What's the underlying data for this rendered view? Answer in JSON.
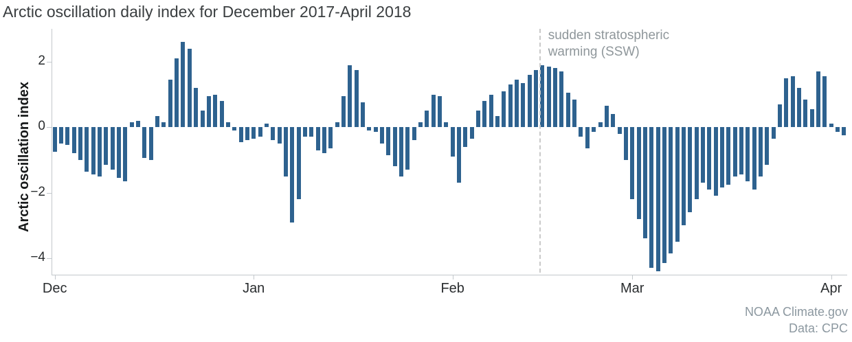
{
  "source": {
    "line1": "NOAA Climate.gov",
    "line2": "Data: CPC"
  },
  "chart_data": {
    "type": "bar",
    "title": "Arctic oscillation daily index for December 2017-April 2018",
    "xlabel": "",
    "ylabel": "Arctic oscillation index",
    "ylim": [
      -4.5,
      3.0
    ],
    "yticks": [
      2,
      0,
      -2,
      -4
    ],
    "grid": false,
    "legend": "none",
    "bar_color": "#2e628f",
    "axis_color": "#c3c8cc",
    "x_tick_labels": [
      "Dec",
      "Jan",
      "Feb",
      "Mar",
      "Apr"
    ],
    "x_tick_day_indices": [
      0,
      31,
      62,
      90,
      121
    ],
    "annotation": {
      "line1": "sudden stratospheric",
      "line2": "warming (SSW)",
      "label": "sudden stratospheric warming (SSW)",
      "day_index": 76,
      "line_color": "#c9c9c9"
    },
    "start_label": "Dec",
    "values": [
      -0.75,
      -0.5,
      -0.55,
      -0.8,
      -1.0,
      -1.35,
      -1.45,
      -1.5,
      -1.15,
      -1.3,
      -1.55,
      -1.65,
      0.15,
      0.2,
      -0.95,
      -1.0,
      0.35,
      0.15,
      1.45,
      2.1,
      2.6,
      2.4,
      1.2,
      0.5,
      0.95,
      1.0,
      0.8,
      0.15,
      -0.1,
      -0.45,
      -0.4,
      -0.35,
      -0.3,
      0.1,
      -0.4,
      -0.5,
      -1.5,
      -2.9,
      -2.2,
      -0.3,
      -0.3,
      -0.7,
      -0.8,
      -0.65,
      0.15,
      0.95,
      1.9,
      1.75,
      0.75,
      -0.1,
      -0.15,
      -0.5,
      -0.85,
      -1.2,
      -1.5,
      -1.3,
      -0.4,
      0.15,
      0.5,
      1.0,
      0.95,
      0.15,
      -0.9,
      -1.7,
      -0.6,
      -0.35,
      0.5,
      0.8,
      1.0,
      0.35,
      1.1,
      1.3,
      1.45,
      1.35,
      1.6,
      1.75,
      1.9,
      1.85,
      1.8,
      1.7,
      1.05,
      0.85,
      -0.3,
      -0.65,
      -0.15,
      0.15,
      0.65,
      0.4,
      -0.2,
      -1.0,
      -2.2,
      -2.8,
      -3.4,
      -4.3,
      -4.4,
      -4.15,
      -3.85,
      -3.5,
      -3.0,
      -2.6,
      -2.2,
      -1.7,
      -1.9,
      -2.1,
      -1.85,
      -1.75,
      -1.5,
      -1.45,
      -1.65,
      -1.9,
      -1.5,
      -1.15,
      -0.35,
      0.7,
      1.5,
      1.55,
      1.2,
      0.85,
      0.55,
      1.7,
      1.55,
      0.1,
      -0.15,
      -0.25
    ]
  }
}
